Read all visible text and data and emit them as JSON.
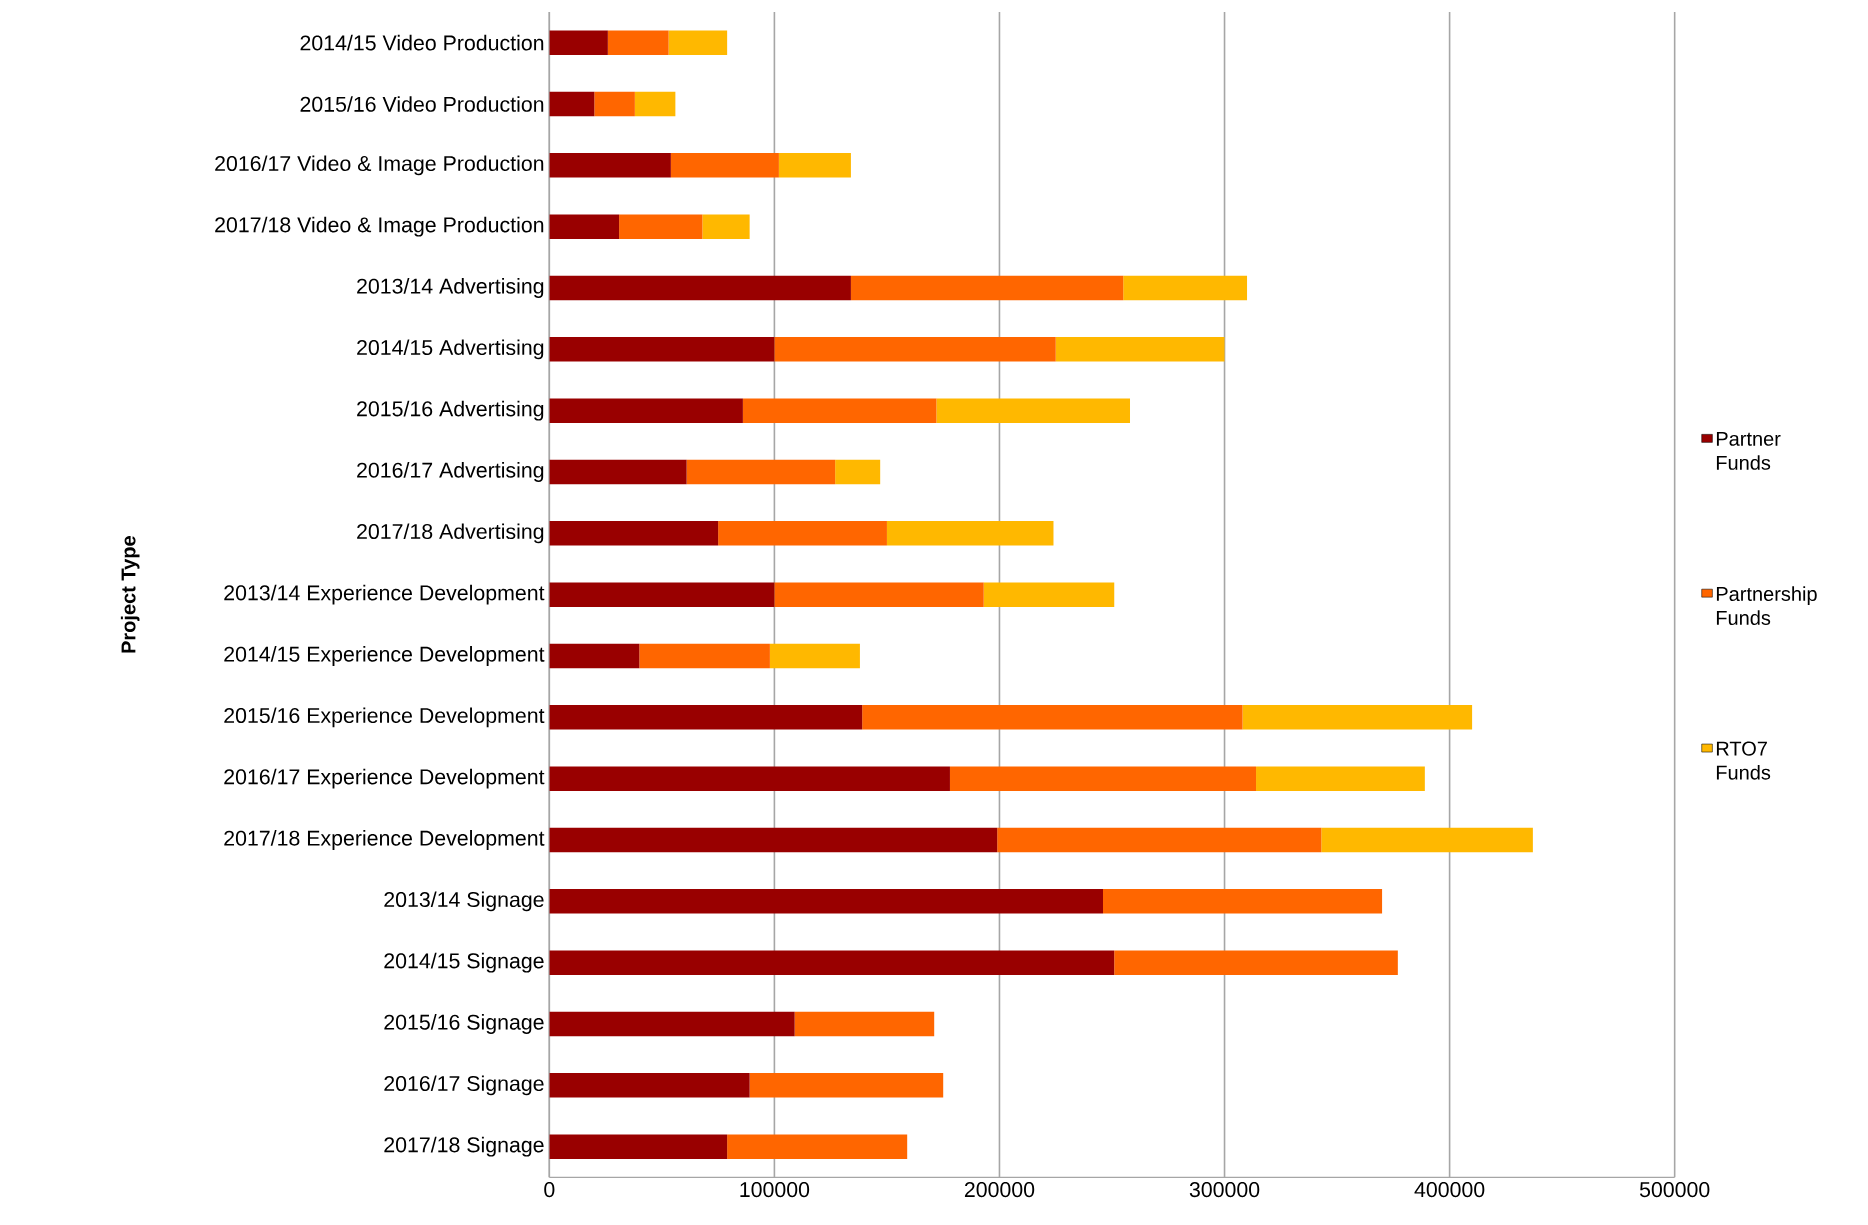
{
  "chart_data": {
    "type": "bar",
    "orientation": "horizontal",
    "stacked": true,
    "ylabel": "Project Type",
    "categories": [
      "2014/15 Video Production",
      "2015/16 Video Production",
      "2016/17 Video & Image Production",
      "2017/18 Video & Image Production",
      "2013/14 Advertising",
      "2014/15 Advertising",
      "2015/16 Advertising",
      "2016/17 Advertising",
      "2017/18 Advertising",
      "2013/14 Experience Development",
      "2014/15 Experience Development",
      "2015/16 Experience Development",
      "2016/17 Experience Development",
      "2017/18 Experience Development",
      "2013/14 Signage",
      "2014/15 Signage",
      "2015/16 Signage",
      "2016/17 Signage",
      "2017/18 Signage"
    ],
    "series": [
      {
        "name": "Partner Funds",
        "color": "#990000",
        "values": [
          26000,
          20000,
          54000,
          31000,
          134000,
          100000,
          86000,
          61000,
          75000,
          100000,
          40000,
          139000,
          178000,
          199000,
          246000,
          251000,
          109000,
          89000,
          79000
        ]
      },
      {
        "name": "Partnership Funds",
        "color": "#ff6600",
        "values": [
          27000,
          18000,
          48000,
          37000,
          121000,
          125000,
          86000,
          66000,
          75000,
          93000,
          58000,
          169000,
          136000,
          144000,
          124000,
          126000,
          62000,
          86000,
          80000
        ]
      },
      {
        "name": "RTO7 Funds",
        "color": "#ffb800",
        "values": [
          26000,
          18000,
          32000,
          21000,
          55000,
          75000,
          86000,
          20000,
          74000,
          58000,
          40000,
          102000,
          75000,
          94000,
          0,
          0,
          0,
          0,
          0
        ]
      }
    ],
    "xlim": [
      0,
      500000
    ],
    "xticks": [
      0,
      100000,
      200000,
      300000,
      400000,
      500000
    ],
    "grid": "x",
    "legend": "right"
  }
}
